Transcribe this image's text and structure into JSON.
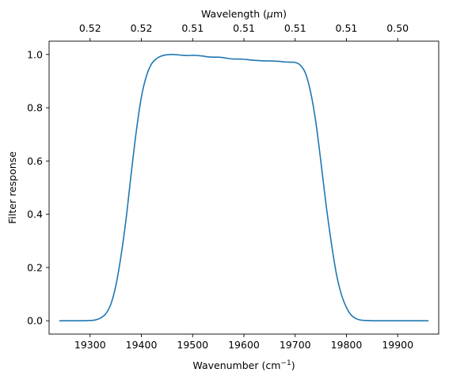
{
  "chart_data": {
    "type": "line",
    "xlabel": "Wavenumber (cm",
    "xlabel_sup": "−1",
    "xlabel_close": ")",
    "ylabel": "Filter response",
    "top_xlabel_prefix": "Wavelength (",
    "top_xlabel_mu": "μ",
    "top_xlabel_suffix": "m)",
    "xlim": [
      19220,
      19980
    ],
    "ylim": [
      -0.05,
      1.05
    ],
    "xticks": [
      19300,
      19400,
      19500,
      19600,
      19700,
      19800,
      19900
    ],
    "xtick_labels": [
      "19300",
      "19400",
      "19500",
      "19600",
      "19700",
      "19800",
      "19900"
    ],
    "yticks": [
      0.0,
      0.2,
      0.4,
      0.6,
      0.8,
      1.0
    ],
    "ytick_labels": [
      "0.0",
      "0.2",
      "0.4",
      "0.6",
      "0.8",
      "1.0"
    ],
    "top_xticks": [
      19300,
      19400,
      19500,
      19600,
      19700,
      19800,
      19900
    ],
    "top_xtick_labels": [
      "0.52",
      "0.52",
      "0.51",
      "0.51",
      "0.51",
      "0.51",
      "0.50"
    ],
    "line_color": "#1f77b4",
    "grid": false,
    "series": [
      {
        "x": [
          19240,
          19260,
          19280,
          19300,
          19310,
          19320,
          19330,
          19340,
          19350,
          19360,
          19370,
          19380,
          19390,
          19400,
          19410,
          19420,
          19430,
          19440,
          19450,
          19460,
          19470,
          19480,
          19490,
          19500,
          19510,
          19520,
          19530,
          19540,
          19550,
          19560,
          19570,
          19580,
          19590,
          19600,
          19610,
          19620,
          19630,
          19640,
          19650,
          19660,
          19670,
          19680,
          19690,
          19700,
          19710,
          19720,
          19730,
          19740,
          19750,
          19760,
          19770,
          19780,
          19790,
          19800,
          19810,
          19820,
          19830,
          19840,
          19850,
          19860,
          19880,
          19900,
          19930,
          19960
        ],
        "y": [
          0.0,
          0.0,
          0.0,
          0.001,
          0.003,
          0.01,
          0.025,
          0.06,
          0.13,
          0.24,
          0.38,
          0.55,
          0.71,
          0.84,
          0.92,
          0.965,
          0.985,
          0.995,
          0.999,
          1.0,
          0.999,
          0.997,
          0.996,
          0.997,
          0.996,
          0.994,
          0.991,
          0.99,
          0.99,
          0.988,
          0.985,
          0.983,
          0.983,
          0.982,
          0.98,
          0.978,
          0.977,
          0.976,
          0.976,
          0.975,
          0.974,
          0.972,
          0.971,
          0.97,
          0.96,
          0.93,
          0.86,
          0.75,
          0.6,
          0.44,
          0.3,
          0.18,
          0.1,
          0.05,
          0.02,
          0.007,
          0.002,
          0.001,
          0.0,
          0.0,
          0.0,
          0.0,
          0.0,
          0.0
        ]
      }
    ]
  }
}
